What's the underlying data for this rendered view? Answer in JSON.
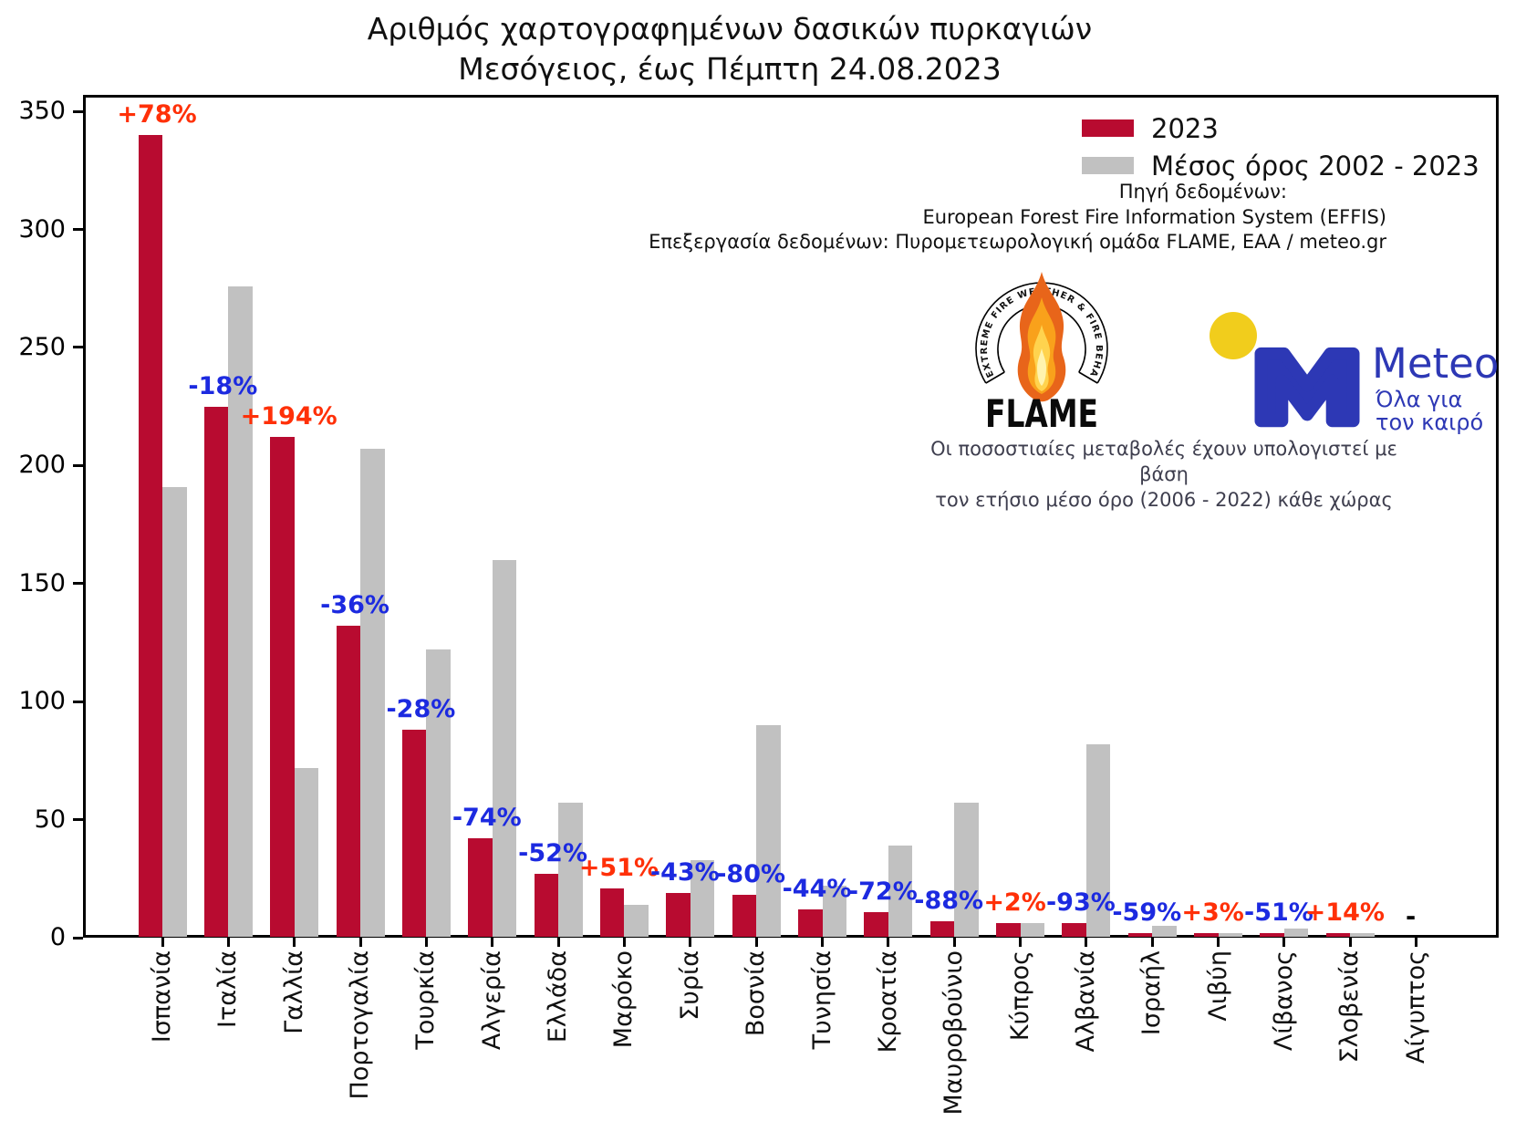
{
  "title": {
    "line1": "Αριθμός χαρτογραφημένων δασικών πυρκαγιών",
    "line2": "Μεσόγειος, έως Πέμπτη 24.08.2023"
  },
  "legend": [
    {
      "label": "2023",
      "color": "#b80b30"
    },
    {
      "label": "Μέσος όρος 2002 - 2023",
      "color": "#c1c1c1"
    }
  ],
  "source": {
    "line1": "Πηγή δεδομένων:",
    "line2": "European Forest Fire Information System (EFFIS)",
    "line3": "Επεξεργασία δεδομένων: Πυρομετεωρολογική ομάδα FLAME, ΕΑΑ / meteo.gr"
  },
  "footnote": {
    "line1": "Οι ποσοστιαίες μεταβολές έχουν υπολογιστεί με βάση",
    "line2": "τον ετήσιο μέσο όρο (2006 - 2022) κάθε χώρας"
  },
  "logos": {
    "flame": {
      "name": "FLAME",
      "motto": "EXTREME FIRE WEATHER & FIRE BEHAVIOUR"
    },
    "meteo": {
      "name": "Meteo",
      "tagline_line1": "Όλα για",
      "tagline_line2": "τον καιρό"
    }
  },
  "chart_data": {
    "type": "bar",
    "title": "Αριθμός χαρτογραφημένων δασικών πυρκαγιών — Μεσόγειος, έως Πέμπτη 24.08.2023",
    "categories": [
      "Ισπανία",
      "Ιταλία",
      "Γαλλία",
      "Πορτογαλία",
      "Τουρκία",
      "Αλγερία",
      "Ελλάδα",
      "Μαρόκο",
      "Συρία",
      "Βοσνία",
      "Τυνησία",
      "Κροατία",
      "Μαυροβούνιο",
      "Κύπρος",
      "Αλβανία",
      "Ισραήλ",
      "Λιβύη",
      "Λίβανος",
      "Σλοβενία",
      "Αίγυπτος"
    ],
    "series": [
      {
        "name": "2023",
        "color": "#b80b30",
        "values": [
          340,
          225,
          212,
          132,
          88,
          42,
          27,
          21,
          19,
          18,
          12,
          11,
          7,
          6,
          6,
          2,
          2,
          2,
          2,
          0
        ]
      },
      {
        "name": "Μέσος όρος 2002 - 2023",
        "color": "#c1c1c1",
        "values": [
          191,
          276,
          72,
          207,
          122,
          160,
          57,
          14,
          33,
          90,
          22,
          39,
          57,
          6,
          82,
          5,
          2,
          4,
          2,
          0
        ]
      }
    ],
    "annotations": [
      "+78%",
      "-18%",
      "+194%",
      "-36%",
      "-28%",
      "-74%",
      "-52%",
      "+51%",
      "-43%",
      "-80%",
      "-44%",
      "-72%",
      "-88%",
      "+2%",
      "-93%",
      "-59%",
      "+3%",
      "-51%",
      "+14%",
      "-"
    ],
    "annotation_colors": {
      "positive": "#ff3008",
      "negative": "#1c2ae0",
      "neutral": "#000000"
    },
    "xlabel": "",
    "ylabel": "",
    "ylim": [
      0,
      357
    ],
    "yticks": [
      0,
      50,
      100,
      150,
      200,
      250,
      300,
      350
    ],
    "grid": false,
    "legend_position": "upper right"
  }
}
